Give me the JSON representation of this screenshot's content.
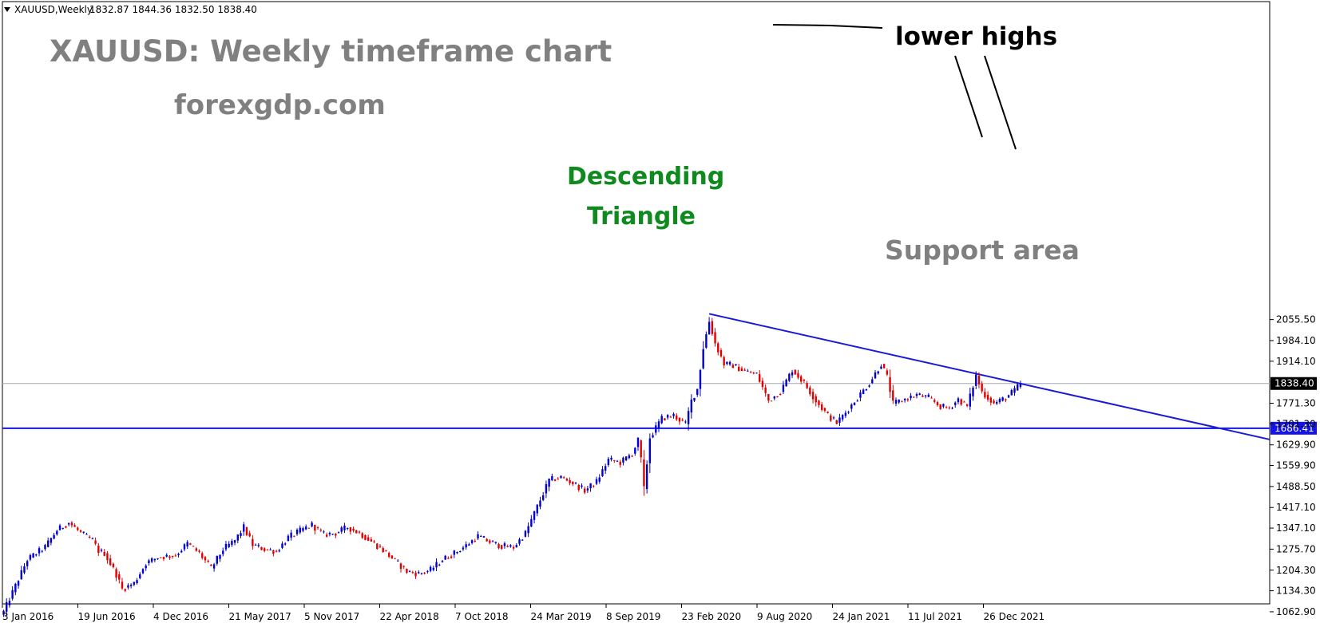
{
  "header": {
    "symbol": "XAUUSD,Weekly",
    "ohlc": "1832.87 1844.36 1832.50 1838.40"
  },
  "chart_data": {
    "type": "candlestick",
    "ylim": [
      1030,
      2100
    ],
    "y_ticks": [
      "2055.50",
      "1984.10",
      "1914.10",
      "1771.30",
      "1701.30",
      "1629.90",
      "1559.90",
      "1488.50",
      "1417.10",
      "1347.10",
      "1275.70",
      "1204.30",
      "1134.30",
      "1062.90"
    ],
    "x_ticks": [
      "3 Jan 2016",
      "19 Jun 2016",
      "4 Dec 2016",
      "21 May 2017",
      "5 Nov 2017",
      "22 Apr 2018",
      "7 Oct 2018",
      "24 Mar 2019",
      "8 Sep 2019",
      "23 Feb 2020",
      "9 Aug 2020",
      "24 Jan 2021",
      "11 Jul 2021",
      "26 Dec 2021"
    ],
    "close_tag": "1838.40",
    "support_tag": "1686.41",
    "support_level": 1686.41,
    "up_color": "#0000d0",
    "down_color": "#e00000",
    "close_line_color": "#a0a8b0",
    "support_line_color": "#1414e6",
    "trendline_color": "#1a1ad6",
    "trendline": {
      "from": [
        "9 Aug 2020",
        2075
      ],
      "to": [
        "26 Dec 2021",
        1838
      ]
    },
    "series": [
      {
        "points": [
          [
            0,
            1062.9
          ],
          [
            8,
            1240
          ],
          [
            14,
            1283
          ],
          [
            18,
            1340
          ],
          [
            22,
            1366
          ],
          [
            26,
            1331
          ],
          [
            30,
            1305
          ],
          [
            32,
            1270
          ],
          [
            34,
            1262
          ],
          [
            38,
            1190
          ],
          [
            40,
            1140
          ],
          [
            44,
            1160
          ],
          [
            48,
            1228
          ],
          [
            52,
            1248
          ],
          [
            58,
            1255
          ],
          [
            62,
            1295
          ],
          [
            66,
            1262
          ],
          [
            70,
            1210
          ],
          [
            74,
            1275
          ],
          [
            78,
            1305
          ],
          [
            81,
            1350
          ],
          [
            84,
            1290
          ],
          [
            88,
            1275
          ],
          [
            92,
            1268
          ],
          [
            96,
            1315
          ],
          [
            100,
            1338
          ],
          [
            104,
            1358
          ],
          [
            108,
            1325
          ],
          [
            112,
            1330
          ],
          [
            116,
            1350
          ],
          [
            120,
            1330
          ],
          [
            124,
            1302
          ],
          [
            128,
            1272
          ],
          [
            132,
            1236
          ],
          [
            136,
            1200
          ],
          [
            140,
            1192
          ],
          [
            144,
            1205
          ],
          [
            148,
            1240
          ],
          [
            152,
            1262
          ],
          [
            156,
            1288
          ],
          [
            160,
            1320
          ],
          [
            164,
            1300
          ],
          [
            168,
            1286
          ],
          [
            172,
            1282
          ],
          [
            176,
            1330
          ],
          [
            180,
            1420
          ],
          [
            184,
            1510
          ],
          [
            188,
            1520
          ],
          [
            192,
            1500
          ],
          [
            196,
            1475
          ],
          [
            200,
            1505
          ],
          [
            204,
            1580
          ],
          [
            208,
            1570
          ],
          [
            212,
            1600
          ],
          [
            214,
            1645
          ],
          [
            215,
            1580
          ],
          [
            216,
            1480
          ],
          [
            218,
            1655
          ],
          [
            222,
            1720
          ],
          [
            226,
            1730
          ],
          [
            230,
            1700
          ],
          [
            232,
            1780
          ],
          [
            234,
            1820
          ],
          [
            236,
            1960
          ],
          [
            238,
            2050
          ],
          [
            240,
            1975
          ],
          [
            243,
            1905
          ],
          [
            246,
            1900
          ],
          [
            250,
            1880
          ],
          [
            254,
            1870
          ],
          [
            258,
            1780
          ],
          [
            262,
            1810
          ],
          [
            266,
            1885
          ],
          [
            270,
            1840
          ],
          [
            274,
            1780
          ],
          [
            278,
            1730
          ],
          [
            281,
            1705
          ],
          [
            284,
            1740
          ],
          [
            288,
            1790
          ],
          [
            292,
            1840
          ],
          [
            296,
            1905
          ],
          [
            298,
            1860
          ],
          [
            300,
            1770
          ],
          [
            304,
            1785
          ],
          [
            308,
            1800
          ],
          [
            312,
            1790
          ],
          [
            316,
            1760
          ],
          [
            319,
            1755
          ],
          [
            322,
            1785
          ],
          [
            325,
            1760
          ],
          [
            328,
            1865
          ],
          [
            330,
            1810
          ],
          [
            334,
            1770
          ],
          [
            338,
            1790
          ],
          [
            341,
            1815
          ],
          [
            343,
            1838.4
          ]
        ]
      }
    ]
  }
}
